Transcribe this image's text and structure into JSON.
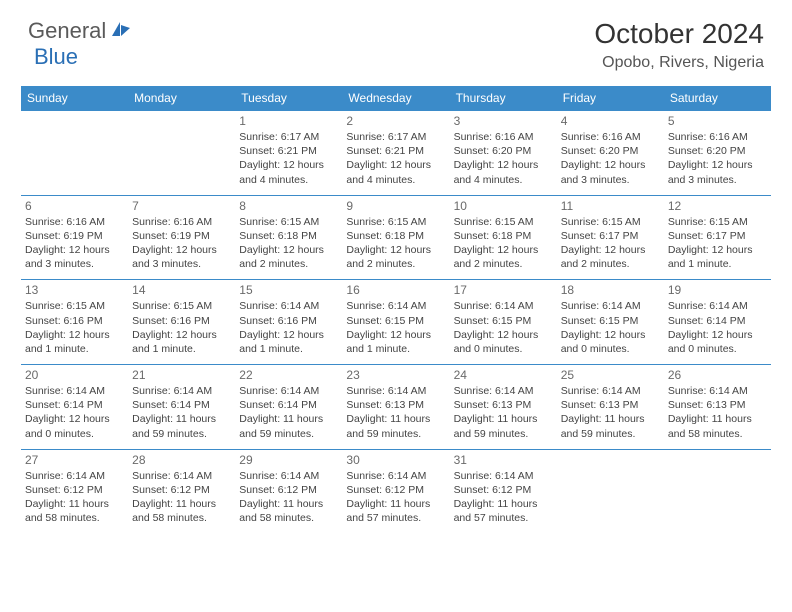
{
  "logo": {
    "part1": "General",
    "part2": "Blue"
  },
  "title": "October 2024",
  "location": "Opobo, Rivers, Nigeria",
  "colors": {
    "header_bg": "#3b8bc9",
    "header_text": "#ffffff",
    "border": "#3b8bc9",
    "logo_gray": "#5a5a5a",
    "logo_blue": "#2a6fb5",
    "text": "#444444",
    "daynum": "#6a6a6a"
  },
  "day_headers": [
    "Sunday",
    "Monday",
    "Tuesday",
    "Wednesday",
    "Thursday",
    "Friday",
    "Saturday"
  ],
  "weeks": [
    [
      null,
      null,
      {
        "n": "1",
        "sr": "Sunrise: 6:17 AM",
        "ss": "Sunset: 6:21 PM",
        "d1": "Daylight: 12 hours",
        "d2": "and 4 minutes."
      },
      {
        "n": "2",
        "sr": "Sunrise: 6:17 AM",
        "ss": "Sunset: 6:21 PM",
        "d1": "Daylight: 12 hours",
        "d2": "and 4 minutes."
      },
      {
        "n": "3",
        "sr": "Sunrise: 6:16 AM",
        "ss": "Sunset: 6:20 PM",
        "d1": "Daylight: 12 hours",
        "d2": "and 4 minutes."
      },
      {
        "n": "4",
        "sr": "Sunrise: 6:16 AM",
        "ss": "Sunset: 6:20 PM",
        "d1": "Daylight: 12 hours",
        "d2": "and 3 minutes."
      },
      {
        "n": "5",
        "sr": "Sunrise: 6:16 AM",
        "ss": "Sunset: 6:20 PM",
        "d1": "Daylight: 12 hours",
        "d2": "and 3 minutes."
      }
    ],
    [
      {
        "n": "6",
        "sr": "Sunrise: 6:16 AM",
        "ss": "Sunset: 6:19 PM",
        "d1": "Daylight: 12 hours",
        "d2": "and 3 minutes."
      },
      {
        "n": "7",
        "sr": "Sunrise: 6:16 AM",
        "ss": "Sunset: 6:19 PM",
        "d1": "Daylight: 12 hours",
        "d2": "and 3 minutes."
      },
      {
        "n": "8",
        "sr": "Sunrise: 6:15 AM",
        "ss": "Sunset: 6:18 PM",
        "d1": "Daylight: 12 hours",
        "d2": "and 2 minutes."
      },
      {
        "n": "9",
        "sr": "Sunrise: 6:15 AM",
        "ss": "Sunset: 6:18 PM",
        "d1": "Daylight: 12 hours",
        "d2": "and 2 minutes."
      },
      {
        "n": "10",
        "sr": "Sunrise: 6:15 AM",
        "ss": "Sunset: 6:18 PM",
        "d1": "Daylight: 12 hours",
        "d2": "and 2 minutes."
      },
      {
        "n": "11",
        "sr": "Sunrise: 6:15 AM",
        "ss": "Sunset: 6:17 PM",
        "d1": "Daylight: 12 hours",
        "d2": "and 2 minutes."
      },
      {
        "n": "12",
        "sr": "Sunrise: 6:15 AM",
        "ss": "Sunset: 6:17 PM",
        "d1": "Daylight: 12 hours",
        "d2": "and 1 minute."
      }
    ],
    [
      {
        "n": "13",
        "sr": "Sunrise: 6:15 AM",
        "ss": "Sunset: 6:16 PM",
        "d1": "Daylight: 12 hours",
        "d2": "and 1 minute."
      },
      {
        "n": "14",
        "sr": "Sunrise: 6:15 AM",
        "ss": "Sunset: 6:16 PM",
        "d1": "Daylight: 12 hours",
        "d2": "and 1 minute."
      },
      {
        "n": "15",
        "sr": "Sunrise: 6:14 AM",
        "ss": "Sunset: 6:16 PM",
        "d1": "Daylight: 12 hours",
        "d2": "and 1 minute."
      },
      {
        "n": "16",
        "sr": "Sunrise: 6:14 AM",
        "ss": "Sunset: 6:15 PM",
        "d1": "Daylight: 12 hours",
        "d2": "and 1 minute."
      },
      {
        "n": "17",
        "sr": "Sunrise: 6:14 AM",
        "ss": "Sunset: 6:15 PM",
        "d1": "Daylight: 12 hours",
        "d2": "and 0 minutes."
      },
      {
        "n": "18",
        "sr": "Sunrise: 6:14 AM",
        "ss": "Sunset: 6:15 PM",
        "d1": "Daylight: 12 hours",
        "d2": "and 0 minutes."
      },
      {
        "n": "19",
        "sr": "Sunrise: 6:14 AM",
        "ss": "Sunset: 6:14 PM",
        "d1": "Daylight: 12 hours",
        "d2": "and 0 minutes."
      }
    ],
    [
      {
        "n": "20",
        "sr": "Sunrise: 6:14 AM",
        "ss": "Sunset: 6:14 PM",
        "d1": "Daylight: 12 hours",
        "d2": "and 0 minutes."
      },
      {
        "n": "21",
        "sr": "Sunrise: 6:14 AM",
        "ss": "Sunset: 6:14 PM",
        "d1": "Daylight: 11 hours",
        "d2": "and 59 minutes."
      },
      {
        "n": "22",
        "sr": "Sunrise: 6:14 AM",
        "ss": "Sunset: 6:14 PM",
        "d1": "Daylight: 11 hours",
        "d2": "and 59 minutes."
      },
      {
        "n": "23",
        "sr": "Sunrise: 6:14 AM",
        "ss": "Sunset: 6:13 PM",
        "d1": "Daylight: 11 hours",
        "d2": "and 59 minutes."
      },
      {
        "n": "24",
        "sr": "Sunrise: 6:14 AM",
        "ss": "Sunset: 6:13 PM",
        "d1": "Daylight: 11 hours",
        "d2": "and 59 minutes."
      },
      {
        "n": "25",
        "sr": "Sunrise: 6:14 AM",
        "ss": "Sunset: 6:13 PM",
        "d1": "Daylight: 11 hours",
        "d2": "and 59 minutes."
      },
      {
        "n": "26",
        "sr": "Sunrise: 6:14 AM",
        "ss": "Sunset: 6:13 PM",
        "d1": "Daylight: 11 hours",
        "d2": "and 58 minutes."
      }
    ],
    [
      {
        "n": "27",
        "sr": "Sunrise: 6:14 AM",
        "ss": "Sunset: 6:12 PM",
        "d1": "Daylight: 11 hours",
        "d2": "and 58 minutes."
      },
      {
        "n": "28",
        "sr": "Sunrise: 6:14 AM",
        "ss": "Sunset: 6:12 PM",
        "d1": "Daylight: 11 hours",
        "d2": "and 58 minutes."
      },
      {
        "n": "29",
        "sr": "Sunrise: 6:14 AM",
        "ss": "Sunset: 6:12 PM",
        "d1": "Daylight: 11 hours",
        "d2": "and 58 minutes."
      },
      {
        "n": "30",
        "sr": "Sunrise: 6:14 AM",
        "ss": "Sunset: 6:12 PM",
        "d1": "Daylight: 11 hours",
        "d2": "and 57 minutes."
      },
      {
        "n": "31",
        "sr": "Sunrise: 6:14 AM",
        "ss": "Sunset: 6:12 PM",
        "d1": "Daylight: 11 hours",
        "d2": "and 57 minutes."
      },
      null,
      null
    ]
  ]
}
